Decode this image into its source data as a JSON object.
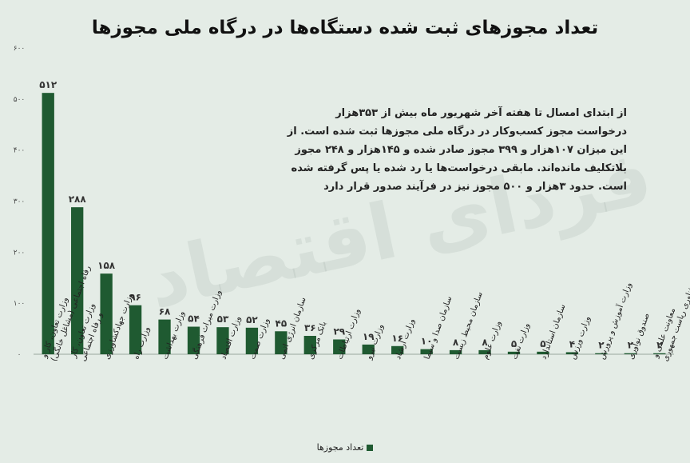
{
  "chart_data": {
    "type": "bar",
    "title": "تعداد مجوزهای ثبت شده دستگاه‌ها در درگاه ملی مجوزها",
    "annotation": "از ابتدای امسال تا هفته آخر شهریور ماه بیش از ۳۵۳هزار درخواست مجوز کسب‌وکار در درگاه ملی مجوزها ثبت شده است. از این میزان ۱۰۷هزار و ۳۹۹ مجوز صادر شده و ۱۴۵هزار و ۲۴۸ مجوز بلاتکلیف مانده‌اند. مابقی درخواست‌ها یا رد شده یا پس گرفته شده است. حدود ۳هزار و ۵۰۰ مجوز نیز در فرآیند صدور قرار دارد",
    "watermark": "فردای اقتصاد",
    "categories": [
      "وزارت تعاون، کار و رفاه اجتماعی (مشاغل خانگی)",
      "وزارت تعاون، کار و رفاه اجتماعی",
      "وزارت جهادکشاورزی",
      "وزارت راه",
      "وزارت بهداشت",
      "وزارت میراث فرهنگی",
      "وزارت اقتصاد",
      "وزارت صمت",
      "سازمان انرژی اتمی",
      "بانک مرکزی",
      "وزارت ارتباطات",
      "وزارت نیرو",
      "وزارت ارشاد",
      "سازمان صدا و سیما",
      "سازمان محیط زیست",
      "وزارت علوم",
      "وزارت نفت",
      "سازمان استاندارد",
      "وزارت ورزش",
      "وزارت آموزش و پرورش",
      "صندوق نوآوری",
      "معاونت علمی و فناوری ریاست جمهوری"
    ],
    "series": [
      {
        "name": "تعداد مجوزها",
        "values": [
          512,
          288,
          158,
          96,
          68,
          54,
          53,
          52,
          45,
          36,
          29,
          19,
          16,
          10,
          8,
          8,
          5,
          5,
          4,
          2,
          2,
          2
        ],
        "value_labels": [
          "۵۱۲",
          "۲۸۸",
          "۱۵۸",
          "۹۶",
          "۶۸",
          "۵۴",
          "۵۳",
          "۵۲",
          "۴۵",
          "۳۶",
          "۲۹",
          "۱۹",
          "۱۶",
          "۱۰",
          "۸",
          "۸",
          "۵",
          "۵",
          "۴",
          "۲",
          "۲",
          "۲"
        ]
      }
    ],
    "ylim": [
      0,
      600
    ],
    "yticks": [
      0,
      100,
      200,
      300,
      400,
      500,
      600
    ],
    "ytick_labels": [
      "۰",
      "۱۰۰",
      "۲۰۰",
      "۳۰۰",
      "۴۰۰",
      "۵۰۰",
      "۶۰۰"
    ],
    "xlabel": "",
    "ylabel": "",
    "grid": false,
    "legend": "bottom",
    "colors": {
      "bar": "#1f5a31",
      "background": "#e4ece6"
    }
  }
}
